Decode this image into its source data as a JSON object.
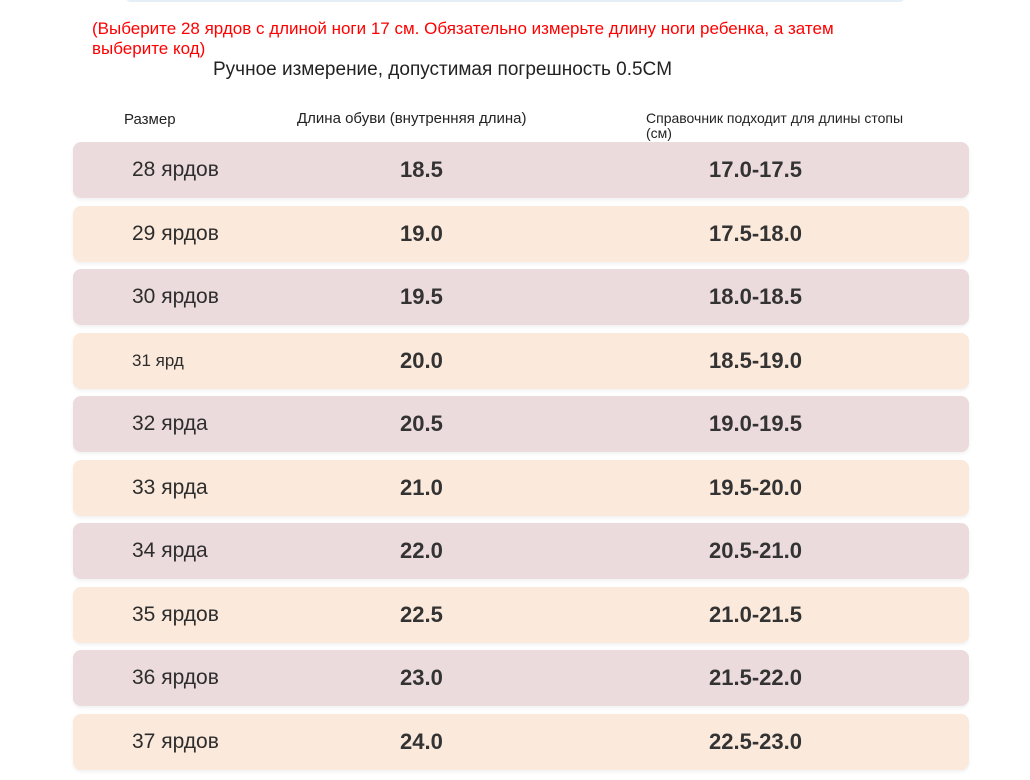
{
  "warning": "(Выберите 28 ярдов с длиной ноги 17 см. Обязательно измерьте длину ноги ребенка, а затем выберите код)",
  "note": "Ручное измерение, допустимая погрешность 0.5CM",
  "headers": {
    "size": "Размер",
    "shoe_length": "Длина обуви (внутренняя длина)",
    "foot_length": "Справочник подходит для длины стопы (см)"
  },
  "colors": {
    "warning": "#ff0000",
    "row_pink": "#ecdbdc",
    "row_peach": "#fbe9db"
  },
  "rows": [
    {
      "size": "28 ярдов",
      "shoe_length": "18.5",
      "foot_length": "17.0-17.5"
    },
    {
      "size": "29 ярдов",
      "shoe_length": "19.0",
      "foot_length": "17.5-18.0"
    },
    {
      "size": "30 ярдов",
      "shoe_length": "19.5",
      "foot_length": "18.0-18.5"
    },
    {
      "size": "31 ярд",
      "shoe_length": "20.0",
      "foot_length": "18.5-19.0"
    },
    {
      "size": "32 ярда",
      "shoe_length": "20.5",
      "foot_length": "19.0-19.5"
    },
    {
      "size": "33 ярда",
      "shoe_length": "21.0",
      "foot_length": "19.5-20.0"
    },
    {
      "size": "34 ярда",
      "shoe_length": "22.0",
      "foot_length": "20.5-21.0"
    },
    {
      "size": "35 ярдов",
      "shoe_length": "22.5",
      "foot_length": "21.0-21.5"
    },
    {
      "size": "36 ярдов",
      "shoe_length": "23.0",
      "foot_length": "21.5-22.0"
    },
    {
      "size": "37 ярдов",
      "shoe_length": "24.0",
      "foot_length": "22.5-23.0"
    }
  ]
}
